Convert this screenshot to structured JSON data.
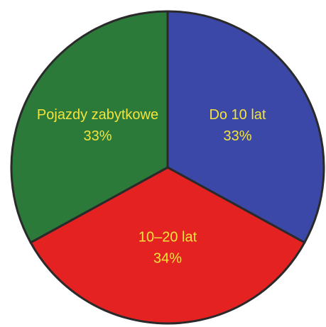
{
  "chart_data": {
    "type": "pie",
    "categories": [
      "Do 10 lat",
      "10–20 lat",
      "Pojazdy zabytkowe"
    ],
    "values": [
      33,
      34,
      33
    ],
    "value_labels": [
      "33%",
      "34%",
      "33%"
    ],
    "colors": [
      "#3c48a8",
      "#e42222",
      "#2b7a3a"
    ],
    "label_color": "#f2e43c"
  }
}
